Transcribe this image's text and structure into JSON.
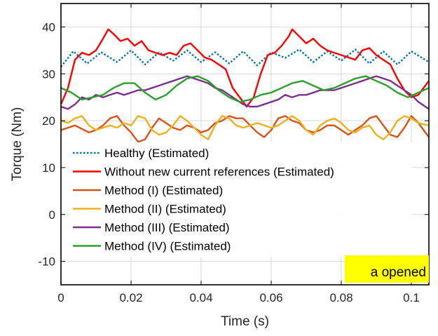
{
  "chart_data": {
    "type": "line",
    "title": "",
    "xlabel": "Time (s)",
    "ylabel": "Torque (Nm)",
    "xlim": [
      0,
      0.105
    ],
    "ylim": [
      -15,
      45
    ],
    "xticks": [
      0,
      0.02,
      0.04,
      0.06,
      0.08,
      0.1
    ],
    "xtick_labels": [
      "0",
      "0.02",
      "0.04",
      "0.06",
      "0.08",
      "0.1"
    ],
    "yticks": [
      -10,
      0,
      10,
      20,
      30,
      40
    ],
    "ytick_labels": [
      "-10",
      "0",
      "10",
      "20",
      "30",
      "40"
    ],
    "grid": true,
    "legend_position": "lower-left",
    "annotation": {
      "text": "a opened",
      "background": "#ffff00",
      "position": "bottom-right"
    },
    "series": [
      {
        "name": "Healthy (Estimated)",
        "color": "#0072bd",
        "dash": "dotted",
        "points": [
          [
            0,
            31.5
          ],
          [
            0.0035,
            34.8
          ],
          [
            0.0075,
            32.2
          ],
          [
            0.0115,
            34.6
          ],
          [
            0.016,
            32.5
          ],
          [
            0.02,
            35.0
          ],
          [
            0.024,
            32.0
          ],
          [
            0.028,
            34.6
          ],
          [
            0.032,
            32.8
          ],
          [
            0.036,
            35.0
          ],
          [
            0.04,
            32.5
          ],
          [
            0.044,
            34.6
          ],
          [
            0.048,
            32.2
          ],
          [
            0.052,
            34.8
          ],
          [
            0.056,
            31.8
          ],
          [
            0.06,
            34.6
          ],
          [
            0.064,
            33.4
          ],
          [
            0.068,
            35.2
          ],
          [
            0.072,
            32.5
          ],
          [
            0.076,
            34.8
          ],
          [
            0.08,
            32.8
          ],
          [
            0.084,
            35.2
          ],
          [
            0.088,
            32.2
          ],
          [
            0.092,
            34.8
          ],
          [
            0.096,
            32.0
          ],
          [
            0.1,
            34.8
          ],
          [
            0.105,
            32.5
          ]
        ]
      },
      {
        "name": "Without new current references (Estimated)",
        "color": "#ff0000",
        "dash": "solid",
        "points": [
          [
            0,
            23.5
          ],
          [
            0.002,
            27
          ],
          [
            0.004,
            33
          ],
          [
            0.006,
            34.5
          ],
          [
            0.008,
            34
          ],
          [
            0.01,
            35
          ],
          [
            0.012,
            37.5
          ],
          [
            0.0135,
            39.5
          ],
          [
            0.015,
            38.5
          ],
          [
            0.017,
            37
          ],
          [
            0.019,
            37.5
          ],
          [
            0.021,
            36
          ],
          [
            0.023,
            37
          ],
          [
            0.025,
            35
          ],
          [
            0.027,
            34.5
          ],
          [
            0.029,
            34
          ],
          [
            0.031,
            34.5
          ],
          [
            0.033,
            34
          ],
          [
            0.035,
            36
          ],
          [
            0.037,
            36.5
          ],
          [
            0.039,
            35
          ],
          [
            0.041,
            33.5
          ],
          [
            0.043,
            33
          ],
          [
            0.045,
            32
          ],
          [
            0.047,
            31
          ],
          [
            0.049,
            27
          ],
          [
            0.051,
            25
          ],
          [
            0.053,
            23
          ],
          [
            0.055,
            25
          ],
          [
            0.057,
            30
          ],
          [
            0.059,
            34
          ],
          [
            0.061,
            34.5
          ],
          [
            0.063,
            36
          ],
          [
            0.065,
            38
          ],
          [
            0.066,
            39.5
          ],
          [
            0.068,
            38
          ],
          [
            0.07,
            36.5
          ],
          [
            0.072,
            37.5
          ],
          [
            0.074,
            36
          ],
          [
            0.076,
            35
          ],
          [
            0.078,
            34.5
          ],
          [
            0.08,
            34
          ],
          [
            0.082,
            33.5
          ],
          [
            0.084,
            33
          ],
          [
            0.086,
            35
          ],
          [
            0.088,
            35.5
          ],
          [
            0.09,
            34
          ],
          [
            0.092,
            33
          ],
          [
            0.094,
            32
          ],
          [
            0.096,
            29
          ],
          [
            0.098,
            26.5
          ],
          [
            0.1,
            25
          ],
          [
            0.102,
            25.5
          ],
          [
            0.105,
            28.5
          ]
        ]
      },
      {
        "name": "Method (I) (Estimated)",
        "color": "#d95319",
        "dash": "solid",
        "points": [
          [
            0,
            18
          ],
          [
            0.004,
            19
          ],
          [
            0.008,
            17.5
          ],
          [
            0.01,
            18
          ],
          [
            0.012,
            19
          ],
          [
            0.014,
            20.5
          ],
          [
            0.016,
            21
          ],
          [
            0.018,
            19
          ],
          [
            0.02,
            17.5
          ],
          [
            0.022,
            15.5
          ],
          [
            0.024,
            16
          ],
          [
            0.026,
            18.5
          ],
          [
            0.028,
            20.5
          ],
          [
            0.03,
            19.5
          ],
          [
            0.032,
            18.5
          ],
          [
            0.034,
            18
          ],
          [
            0.036,
            19
          ],
          [
            0.038,
            18.5
          ],
          [
            0.04,
            17.5
          ],
          [
            0.042,
            18
          ],
          [
            0.044,
            19.5
          ],
          [
            0.046,
            20
          ],
          [
            0.048,
            21
          ],
          [
            0.05,
            20.5
          ],
          [
            0.052,
            20.5
          ],
          [
            0.054,
            19
          ],
          [
            0.056,
            17.5
          ],
          [
            0.058,
            16.5
          ],
          [
            0.06,
            18
          ],
          [
            0.062,
            20.5
          ],
          [
            0.064,
            21
          ],
          [
            0.066,
            20
          ],
          [
            0.068,
            19.5
          ],
          [
            0.07,
            18
          ],
          [
            0.072,
            17.5
          ],
          [
            0.074,
            18
          ],
          [
            0.076,
            19
          ],
          [
            0.078,
            19
          ],
          [
            0.08,
            18
          ],
          [
            0.082,
            17
          ],
          [
            0.084,
            18
          ],
          [
            0.086,
            19
          ],
          [
            0.088,
            20.5
          ],
          [
            0.09,
            21
          ],
          [
            0.092,
            19
          ],
          [
            0.094,
            17
          ],
          [
            0.096,
            16.5
          ],
          [
            0.098,
            18.5
          ],
          [
            0.1,
            21
          ],
          [
            0.102,
            19.5
          ],
          [
            0.105,
            16.5
          ]
        ]
      },
      {
        "name": "Method (II) (Estimated)",
        "color": "#edb120",
        "dash": "solid",
        "points": [
          [
            0,
            20
          ],
          [
            0.002,
            19.5
          ],
          [
            0.004,
            20.5
          ],
          [
            0.006,
            21
          ],
          [
            0.008,
            19
          ],
          [
            0.01,
            18
          ],
          [
            0.012,
            18.5
          ],
          [
            0.014,
            19
          ],
          [
            0.016,
            18.5
          ],
          [
            0.018,
            19.5
          ],
          [
            0.02,
            19
          ],
          [
            0.022,
            21
          ],
          [
            0.024,
            20.5
          ],
          [
            0.026,
            18
          ],
          [
            0.028,
            17
          ],
          [
            0.03,
            17.5
          ],
          [
            0.032,
            19
          ],
          [
            0.034,
            21
          ],
          [
            0.036,
            20
          ],
          [
            0.038,
            18.5
          ],
          [
            0.04,
            17
          ],
          [
            0.042,
            16
          ],
          [
            0.044,
            19
          ],
          [
            0.046,
            21
          ],
          [
            0.048,
            20.5
          ],
          [
            0.05,
            19
          ],
          [
            0.052,
            18.5
          ],
          [
            0.054,
            19
          ],
          [
            0.056,
            19.5
          ],
          [
            0.058,
            19
          ],
          [
            0.06,
            18.5
          ],
          [
            0.062,
            19
          ],
          [
            0.064,
            20
          ],
          [
            0.066,
            21
          ],
          [
            0.068,
            20
          ],
          [
            0.07,
            18
          ],
          [
            0.072,
            17
          ],
          [
            0.074,
            19
          ],
          [
            0.076,
            20
          ],
          [
            0.078,
            20.5
          ],
          [
            0.08,
            19.5
          ],
          [
            0.082,
            18
          ],
          [
            0.084,
            17.5
          ],
          [
            0.086,
            18.5
          ],
          [
            0.088,
            19
          ],
          [
            0.09,
            17
          ],
          [
            0.092,
            16
          ],
          [
            0.094,
            17.5
          ],
          [
            0.096,
            20
          ],
          [
            0.098,
            21
          ],
          [
            0.1,
            20.5
          ],
          [
            0.102,
            19.5
          ],
          [
            0.105,
            19
          ]
        ]
      },
      {
        "name": "Method (III) (Estimated)",
        "color": "#7e2f8e",
        "dash": "solid",
        "points": [
          [
            0,
            23
          ],
          [
            0.002,
            22.5
          ],
          [
            0.004,
            23.5
          ],
          [
            0.006,
            25
          ],
          [
            0.008,
            24.5
          ],
          [
            0.01,
            25.5
          ],
          [
            0.012,
            25
          ],
          [
            0.014,
            25.5
          ],
          [
            0.016,
            26
          ],
          [
            0.018,
            25.5
          ],
          [
            0.02,
            26
          ],
          [
            0.022,
            26.5
          ],
          [
            0.024,
            26.5
          ],
          [
            0.026,
            27
          ],
          [
            0.028,
            27.5
          ],
          [
            0.03,
            28
          ],
          [
            0.032,
            28.5
          ],
          [
            0.034,
            29
          ],
          [
            0.036,
            29.5
          ],
          [
            0.038,
            29
          ],
          [
            0.04,
            28.5
          ],
          [
            0.042,
            28
          ],
          [
            0.044,
            27
          ],
          [
            0.046,
            26.5
          ],
          [
            0.048,
            25.5
          ],
          [
            0.05,
            24.5
          ],
          [
            0.052,
            23.5
          ],
          [
            0.054,
            23
          ],
          [
            0.056,
            23
          ],
          [
            0.058,
            23.5
          ],
          [
            0.06,
            24
          ],
          [
            0.062,
            24.5
          ],
          [
            0.064,
            25.5
          ],
          [
            0.066,
            25
          ],
          [
            0.068,
            25.5
          ],
          [
            0.07,
            25.5
          ],
          [
            0.072,
            26
          ],
          [
            0.074,
            26.5
          ],
          [
            0.076,
            26.5
          ],
          [
            0.078,
            26.5
          ],
          [
            0.08,
            27
          ],
          [
            0.082,
            27.5
          ],
          [
            0.084,
            28
          ],
          [
            0.086,
            28.5
          ],
          [
            0.088,
            29
          ],
          [
            0.09,
            29.5
          ],
          [
            0.092,
            29
          ],
          [
            0.094,
            28.5
          ],
          [
            0.096,
            27.5
          ],
          [
            0.098,
            26.5
          ],
          [
            0.1,
            25.5
          ],
          [
            0.102,
            24
          ],
          [
            0.105,
            22.5
          ]
        ]
      },
      {
        "name": "Method (IV) (Estimated)",
        "color": "#2ca02c",
        "dash": "solid",
        "points": [
          [
            0,
            27
          ],
          [
            0.003,
            26
          ],
          [
            0.006,
            24.5
          ],
          [
            0.009,
            25
          ],
          [
            0.012,
            25.5
          ],
          [
            0.015,
            27
          ],
          [
            0.018,
            28
          ],
          [
            0.021,
            28
          ],
          [
            0.024,
            26
          ],
          [
            0.027,
            24.5
          ],
          [
            0.03,
            25.5
          ],
          [
            0.033,
            27.5
          ],
          [
            0.036,
            29
          ],
          [
            0.039,
            29.5
          ],
          [
            0.042,
            28.5
          ],
          [
            0.045,
            26.5
          ],
          [
            0.048,
            25
          ],
          [
            0.051,
            24
          ],
          [
            0.054,
            24.5
          ],
          [
            0.057,
            25.5
          ],
          [
            0.06,
            26
          ],
          [
            0.063,
            27
          ],
          [
            0.066,
            28
          ],
          [
            0.069,
            28.5
          ],
          [
            0.072,
            27.5
          ],
          [
            0.075,
            26.5
          ],
          [
            0.078,
            27
          ],
          [
            0.081,
            28
          ],
          [
            0.084,
            29
          ],
          [
            0.087,
            29.5
          ],
          [
            0.09,
            28.5
          ],
          [
            0.093,
            27.5
          ],
          [
            0.096,
            26
          ],
          [
            0.099,
            25
          ],
          [
            0.102,
            26
          ],
          [
            0.105,
            27
          ]
        ]
      }
    ]
  }
}
